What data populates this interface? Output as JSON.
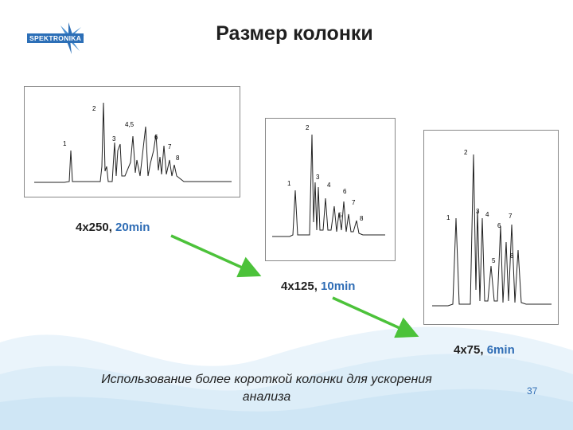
{
  "slide": {
    "title": "Размер колонки",
    "logo_text": "SPEKTRONIKA",
    "footer": [
      "Использование более короткой колонки для ускорения",
      "анализа"
    ],
    "page_number": "37"
  },
  "colors": {
    "arrow": "#4cc23a",
    "accent_blue": "#2f6db5",
    "logo_blue": "#2c6fb7"
  },
  "chromatograms": [
    {
      "column": "4x250, ",
      "time": "20min",
      "peaks": [
        {
          "label": "1"
        },
        {
          "label": "2"
        },
        {
          "label": "3"
        },
        {
          "label": "4,5"
        },
        {
          "label": "6"
        },
        {
          "label": "7"
        },
        {
          "label": "8"
        }
      ]
    },
    {
      "column": "4x125, ",
      "time": "10min",
      "peaks": [
        {
          "label": "1"
        },
        {
          "label": "2"
        },
        {
          "label": "3"
        },
        {
          "label": "4"
        },
        {
          "label": "5"
        },
        {
          "label": "6"
        },
        {
          "label": "7"
        },
        {
          "label": "8"
        }
      ]
    },
    {
      "column": "4x75, ",
      "time": "6min",
      "peaks": [
        {
          "label": "1"
        },
        {
          "label": "2"
        },
        {
          "label": "3"
        },
        {
          "label": "4"
        },
        {
          "label": "5"
        },
        {
          "label": "6"
        },
        {
          "label": "7"
        },
        {
          "label": "8"
        }
      ]
    }
  ]
}
